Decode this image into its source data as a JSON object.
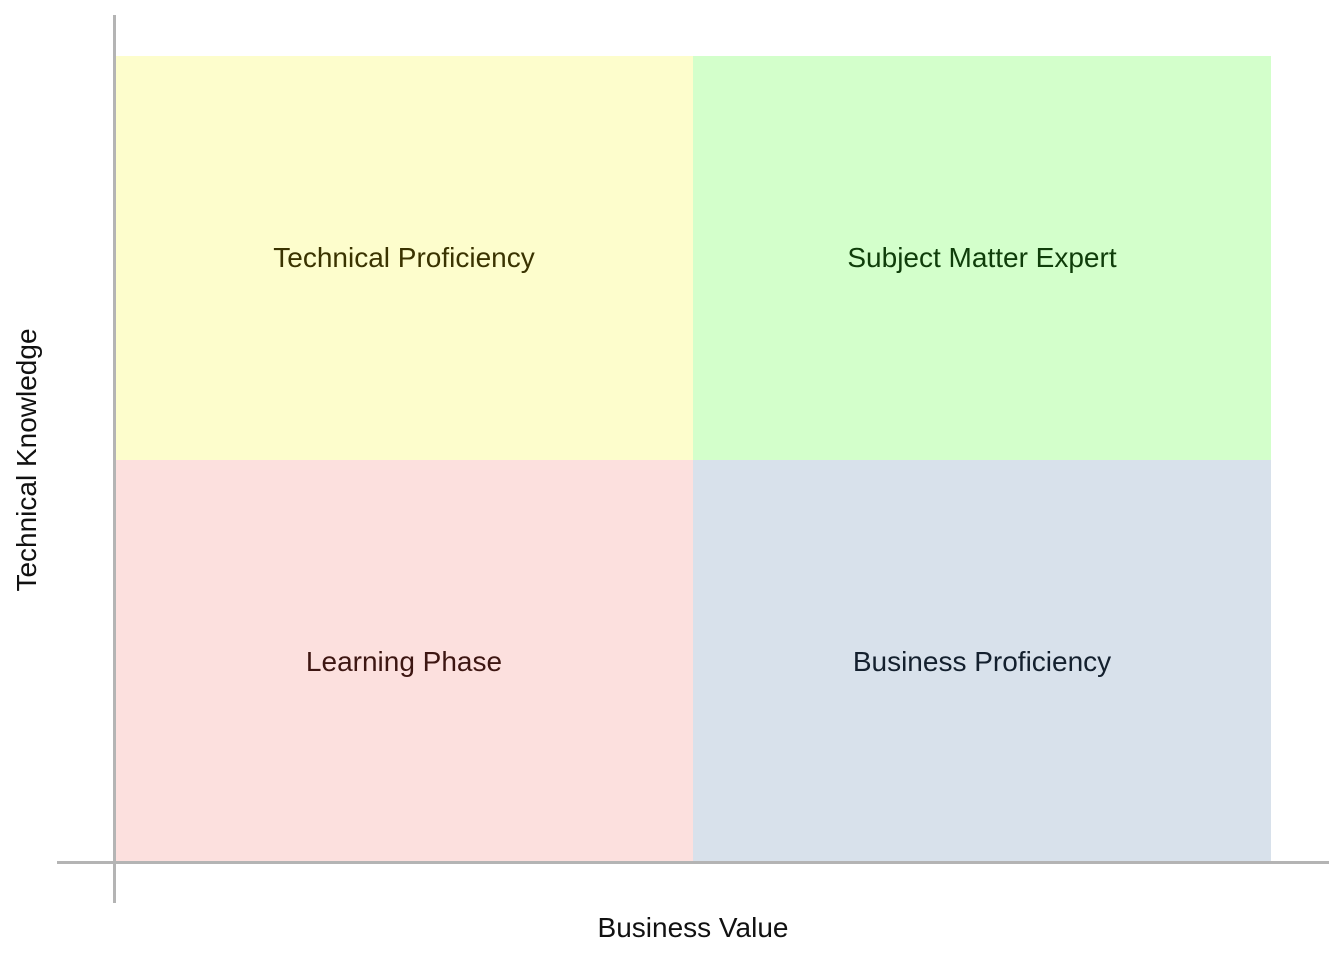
{
  "quadrants": {
    "top_left": {
      "label": "Technical Proficiency",
      "fill": "#fdfdcc",
      "text_color": "#3a3300"
    },
    "top_right": {
      "label": "Subject Matter Expert",
      "fill": "#d3ffcb",
      "text_color": "#0f3d0a"
    },
    "bottom_left": {
      "label": "Learning Phase",
      "fill": "#fce0de",
      "text_color": "#3d1612"
    },
    "bottom_right": {
      "label": "Business Proficiency",
      "fill": "#d8e1eb",
      "text_color": "#14202e"
    }
  },
  "axes": {
    "x_label": "Business Value",
    "y_label": "Technical Knowledge",
    "line_color": "#b4b4b4"
  }
}
